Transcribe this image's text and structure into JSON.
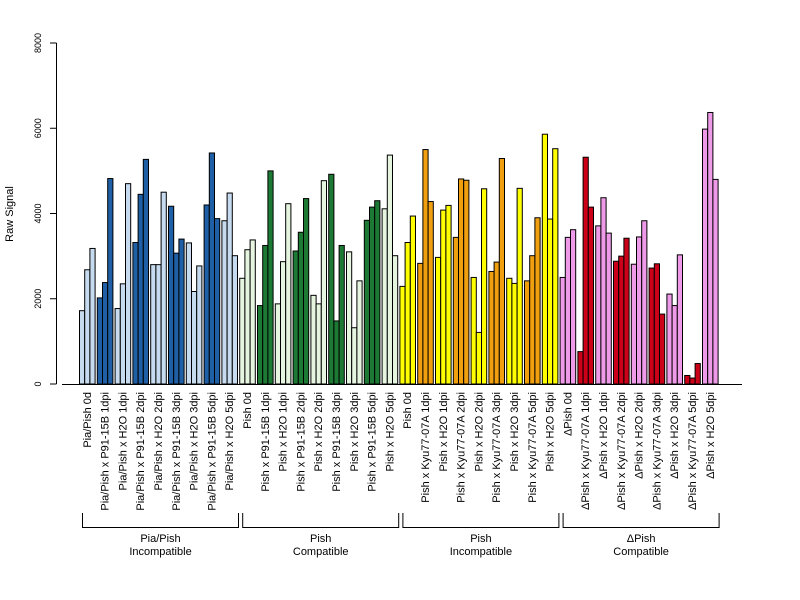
{
  "chart_data": {
    "type": "bar",
    "ylabel": "Raw Signal",
    "ylim": [
      0,
      8000
    ],
    "yticks": [
      0,
      2000,
      4000,
      6000,
      8000
    ],
    "bar_outline": "#000000",
    "categories": [
      "Pia/Pish 0d",
      "Pia/Pish x P91-15B 1dpi",
      "Pia/Pish x H2O 1dpi",
      "Pia/Pish x P91-15B 2dpi",
      "Pia/Pish x H2O 2dpi",
      "Pia/Pish x P91-15B 3dpi",
      "Pia/Pish x H2O 3dpi",
      "Pia/Pish x P91-15B 5dpi",
      "Pia/Pish x H2O 5dpi",
      "Pish 0d",
      "Pish x P91-15B 1dpi",
      "Pish x H2O 1dpi",
      "Pish x P91-15B 2dpi",
      "Pish x H2O 2dpi",
      "Pish x P91-15B 3dpi",
      "Pish x H2O 3dpi",
      "Pish x P91-15B 5dpi",
      "Pish x H2O 5dpi",
      "Pish 0d",
      "Pish x Kyu77-07A 1dpi",
      "Pish x H2O 1dpi",
      "Pish x Kyu77-07A 2dpi",
      "Pish x H2O 2dpi",
      "Pish x Kyu77-07A 3dpi",
      "Pish x H2O 3dpi",
      "Pish x Kyu77-07A 5dpi",
      "Pish x H2O 5dpi",
      "ΔPish 0d",
      "ΔPish x Kyu77-07A 1dpi",
      "ΔPish x H2O 1dpi",
      "ΔPish x Kyu77-07A 2dpi",
      "ΔPish x H2O 2dpi",
      "ΔPish x Kyu77-07A 3dpi",
      "ΔPish x H2O 3dpi",
      "ΔPish x Kyu77-07A 5dpi",
      "ΔPish x H2O 5dpi"
    ],
    "values": [
      [
        1720,
        2680,
        3180
      ],
      [
        2020,
        2380,
        4820
      ],
      [
        1770,
        2350,
        4700
      ],
      [
        3320,
        4450,
        5270
      ],
      [
        2800,
        2800,
        4500
      ],
      [
        4170,
        3070,
        3400
      ],
      [
        3310,
        2170,
        2770
      ],
      [
        4200,
        5420,
        3880
      ],
      [
        3830,
        4480,
        3010
      ],
      [
        2480,
        3150,
        3380
      ],
      [
        1840,
        3250,
        5000
      ],
      [
        1880,
        2870,
        4230
      ],
      [
        3120,
        3560,
        4350
      ],
      [
        2080,
        1880,
        4770
      ],
      [
        4920,
        1480,
        3250
      ],
      [
        3100,
        1320,
        2420
      ],
      [
        3840,
        4150,
        4300
      ],
      [
        4110,
        5370,
        3010
      ],
      [
        2290,
        3320,
        3940
      ],
      [
        2830,
        5500,
        4280
      ],
      [
        2970,
        4080,
        4190
      ],
      [
        3440,
        4810,
        4780
      ],
      [
        2500,
        1210,
        4580
      ],
      [
        2640,
        2860,
        5290
      ],
      [
        2480,
        2360,
        4590
      ],
      [
        2420,
        3010,
        3900
      ],
      [
        5860,
        3870,
        5520
      ],
      [
        2500,
        3440,
        3620
      ],
      [
        760,
        5320,
        4150
      ],
      [
        3710,
        4370,
        3540
      ],
      [
        2880,
        3000,
        3420
      ],
      [
        2810,
        3450,
        3830
      ],
      [
        2720,
        2820,
        1640
      ],
      [
        2110,
        1840,
        3030
      ],
      [
        200,
        140,
        480
      ],
      [
        5980,
        6370,
        4800
      ]
    ],
    "series_colors": [
      "#c6dbef",
      "#1f5fa6",
      "#c6dbef",
      "#1f5fa6",
      "#c6dbef",
      "#1f5fa6",
      "#c6dbef",
      "#1f5fa6",
      "#c6dbef",
      "#e5f5e0",
      "#1d7a34",
      "#e5f5e0",
      "#1d7a34",
      "#e5f5e0",
      "#1d7a34",
      "#e5f5e0",
      "#1d7a34",
      "#e5f5e0",
      "#ffff00",
      "#f0a00e",
      "#ffff00",
      "#f0a00e",
      "#ffff00",
      "#f0a00e",
      "#ffff00",
      "#f0a00e",
      "#ffff00",
      "#ee9ae8",
      "#cc0018",
      "#ee9ae8",
      "#cc0018",
      "#ee9ae8",
      "#cc0018",
      "#ee9ae8",
      "#cc0018",
      "#ee9ae8"
    ],
    "groups": [
      {
        "line1": "Pia/Pish",
        "line2": "Incompatible",
        "start": 0,
        "end": 8
      },
      {
        "line1": "Pish",
        "line2": "Compatible",
        "start": 9,
        "end": 17
      },
      {
        "line1": "Pish",
        "line2": "Incompatible",
        "start": 18,
        "end": 26
      },
      {
        "line1": "ΔPish",
        "line2": "Compatible",
        "start": 27,
        "end": 35
      }
    ]
  }
}
